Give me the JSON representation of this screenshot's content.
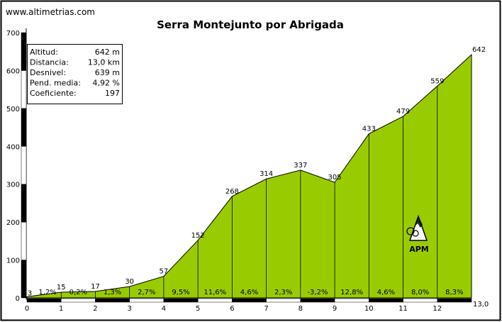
{
  "site_url": "www.altimetrias.com",
  "chart_data": {
    "type": "area",
    "title": "Serra Montejunto por Abrigada",
    "x": [
      0,
      1,
      2,
      3,
      4,
      5,
      6,
      7,
      8,
      9,
      10,
      11,
      12,
      13.0
    ],
    "y": [
      3,
      15,
      17,
      30,
      57,
      152,
      268,
      314,
      337,
      305,
      433,
      479,
      559,
      642
    ],
    "point_labels": [
      "3",
      "15",
      "17",
      "30",
      "57",
      "152",
      "268",
      "314",
      "337",
      "305",
      "433",
      "479",
      "559",
      "642"
    ],
    "segment_gradients": [
      "1,2%",
      "0,2%",
      "1,3%",
      "2,7%",
      "9,5%",
      "11,6%",
      "4,6%",
      "2,3%",
      "-3,2%",
      "12,8%",
      "4,6%",
      "8,0%",
      "8,3%"
    ],
    "x_ticks": [
      "0",
      "1",
      "2",
      "3",
      "4",
      "5",
      "6",
      "7",
      "8",
      "9",
      "10",
      "11",
      "12"
    ],
    "x_end_label": "13,0",
    "y_ticks": [
      "0",
      "100",
      "200",
      "300",
      "400",
      "500",
      "600",
      "700"
    ],
    "xlim": [
      0,
      13.0
    ],
    "ylim": [
      0,
      700
    ],
    "grid": false,
    "fill_color": "#99cc00",
    "stats": [
      {
        "label": "Altitud:",
        "value": "642 m"
      },
      {
        "label": "Distancia:",
        "value": "13,0 km"
      },
      {
        "label": "Desnivel:",
        "value": "639 m"
      },
      {
        "label": "Pend. media:",
        "value": "4,92 %"
      },
      {
        "label": "Coeficiente:",
        "value": "197"
      }
    ],
    "logo_text": "APM"
  }
}
